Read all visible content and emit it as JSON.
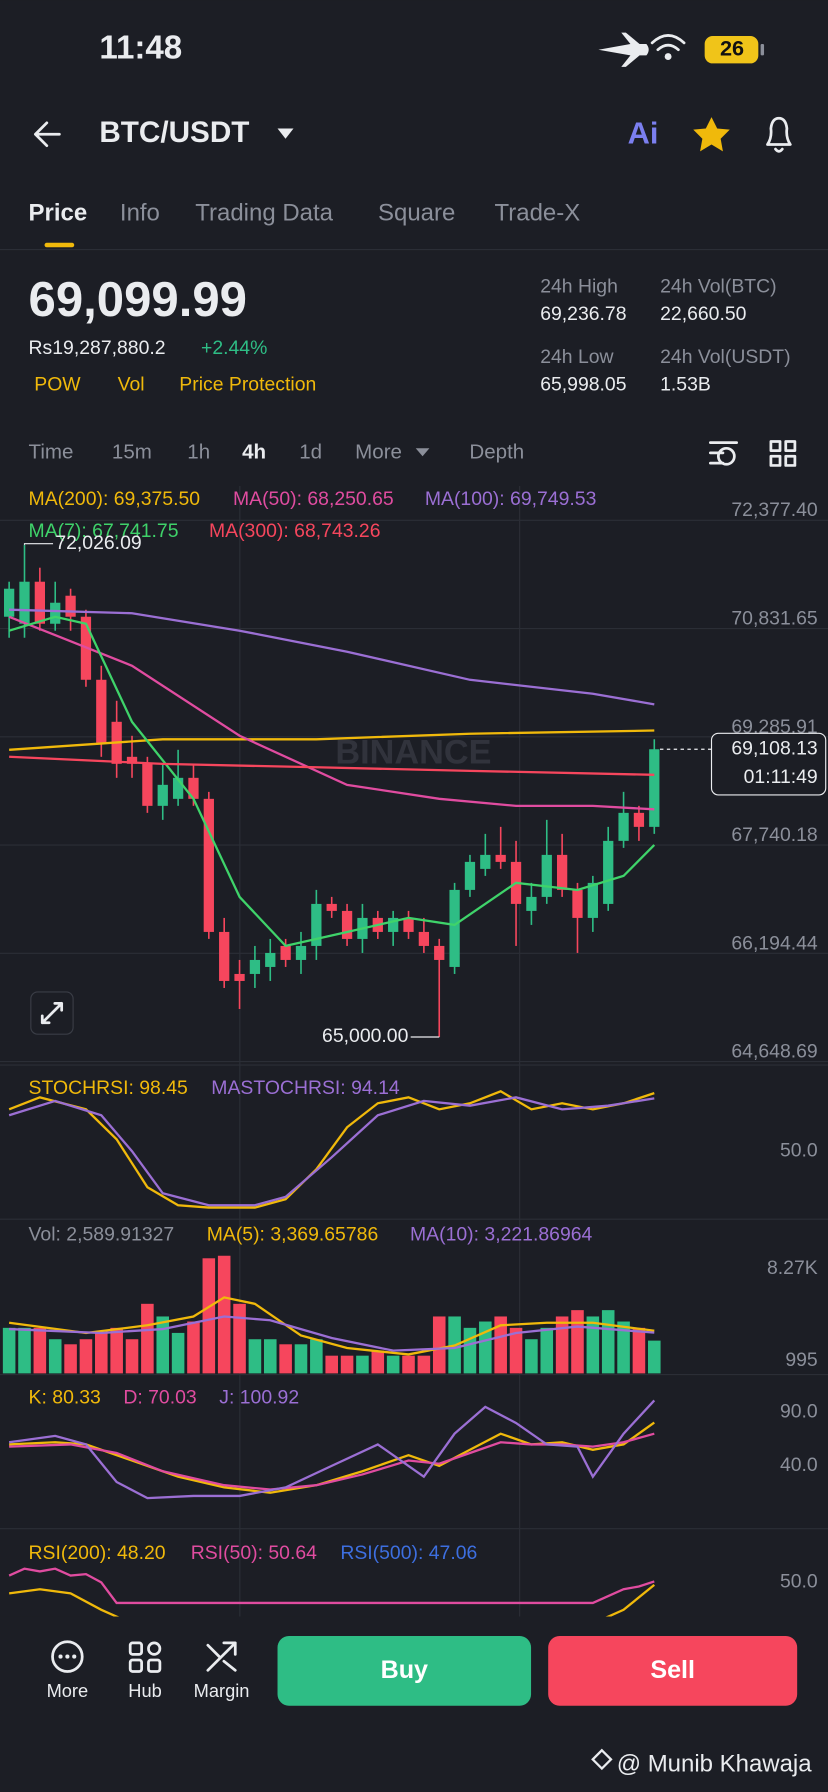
{
  "status_bar": {
    "time": "11:48",
    "battery": "26"
  },
  "header": {
    "pair": "BTC/USDT",
    "ai": "Ai"
  },
  "tabs": {
    "items": [
      "Price",
      "Info",
      "Trading Data",
      "Square",
      "Trade-X"
    ],
    "active": 0
  },
  "ticker": {
    "last_price": "69,099.99",
    "fiat_price": "Rs19,287,880.2",
    "change": "+2.44%",
    "tags": [
      "POW",
      "Vol",
      "Price Protection"
    ],
    "stats": [
      {
        "label": "24h High",
        "value": "69,236.78"
      },
      {
        "label": "24h Vol(BTC)",
        "value": "22,660.50"
      },
      {
        "label": "24h Low",
        "value": "65,998.05"
      },
      {
        "label": "24h Vol(USDT)",
        "value": "1.53B"
      }
    ]
  },
  "intervals": {
    "items": [
      "Time",
      "15m",
      "1h",
      "4h",
      "1d",
      "More",
      "Depth"
    ],
    "active": 3
  },
  "price_chart": {
    "type": "candlestick",
    "watermark": "BINANCE",
    "up_color": "#2ebd85",
    "down_color": "#f6465d",
    "ylim": [
      64648.69,
      72377.4
    ],
    "yticks": [
      {
        "value": 72377.4,
        "label": "72,377.40"
      },
      {
        "value": 70831.65,
        "label": "70,831.65"
      },
      {
        "value": 69285.91,
        "label": "69,285.91"
      },
      {
        "value": 67740.18,
        "label": "67,740.18"
      },
      {
        "value": 66194.44,
        "label": "66,194.44"
      },
      {
        "value": 64648.69,
        "label": "64,648.69"
      }
    ],
    "candles": [
      [
        71000,
        71500,
        70700,
        71400
      ],
      [
        70900,
        72026.09,
        70700,
        71500
      ],
      [
        71500,
        71700,
        70800,
        70900
      ],
      [
        70900,
        71500,
        70800,
        71200
      ],
      [
        71300,
        71400,
        70800,
        71000
      ],
      [
        71000,
        71100,
        70000,
        70100
      ],
      [
        70100,
        70300,
        69000,
        69200
      ],
      [
        69500,
        69800,
        68700,
        68900
      ],
      [
        69000,
        69300,
        68700,
        68900
      ],
      [
        68900,
        69000,
        68200,
        68300
      ],
      [
        68300,
        68900,
        68100,
        68600
      ],
      [
        68400,
        69100,
        68300,
        68700
      ],
      [
        68700,
        68900,
        68300,
        68400
      ],
      [
        68400,
        68500,
        66400,
        66500
      ],
      [
        66500,
        66700,
        65700,
        65800
      ],
      [
        65900,
        66100,
        65400,
        65800
      ],
      [
        65900,
        66300,
        65700,
        66100
      ],
      [
        66000,
        66400,
        65800,
        66200
      ],
      [
        66300,
        66400,
        66000,
        66100
      ],
      [
        66100,
        66500,
        65900,
        66300
      ],
      [
        66300,
        67100,
        66100,
        66900
      ],
      [
        66900,
        67000,
        66700,
        66800
      ],
      [
        66800,
        66900,
        66300,
        66400
      ],
      [
        66400,
        66900,
        66200,
        66700
      ],
      [
        66700,
        66800,
        66400,
        66500
      ],
      [
        66500,
        66800,
        66300,
        66700
      ],
      [
        66700,
        66800,
        66400,
        66500
      ],
      [
        66500,
        66700,
        66200,
        66300
      ],
      [
        66300,
        66400,
        65000,
        66100
      ],
      [
        66000,
        67200,
        65900,
        67100
      ],
      [
        67100,
        67600,
        67000,
        67500
      ],
      [
        67400,
        67900,
        67300,
        67600
      ],
      [
        67600,
        68000,
        67400,
        67500
      ],
      [
        67500,
        67800,
        66300,
        66900
      ],
      [
        66800,
        67200,
        66600,
        67000
      ],
      [
        67000,
        68100,
        66900,
        67600
      ],
      [
        67600,
        67900,
        67000,
        67100
      ],
      [
        67100,
        67200,
        66200,
        66700
      ],
      [
        66700,
        67300,
        66500,
        67200
      ],
      [
        66900,
        68000,
        66800,
        67800
      ],
      [
        67800,
        68500,
        67700,
        68200
      ],
      [
        68200,
        68300,
        67800,
        68000
      ],
      [
        68000,
        69250,
        67900,
        69108.13
      ]
    ],
    "high_label": "72,026.09",
    "low_label": "65,000.00",
    "last_label": "69,108.13",
    "countdown": "01:11:49",
    "moving_averages": [
      {
        "legend": "MA(200): 69,375.50",
        "color": "#f0b90b",
        "x": [
          0,
          10,
          20,
          30,
          42
        ],
        "values": [
          69100,
          69250,
          69250,
          69330,
          69375.5
        ]
      },
      {
        "legend": "MA(50): 68,250.65",
        "color": "#e04ca0",
        "x": [
          0,
          8,
          15,
          22,
          28,
          33,
          38,
          42
        ],
        "values": [
          71000,
          70300,
          69300,
          68600,
          68400,
          68300,
          68300,
          68250.65
        ]
      },
      {
        "legend": "MA(100): 69,749.53",
        "color": "#9b6fd4",
        "x": [
          0,
          8,
          15,
          22,
          30,
          38,
          42
        ],
        "values": [
          71100,
          71050,
          70800,
          70500,
          70100,
          69900,
          69749.53
        ]
      },
      {
        "legend": "MA(7): 67,741.75",
        "color": "#3fd36a",
        "x": [
          0,
          3,
          5,
          8,
          12,
          15,
          18,
          22,
          26,
          29,
          33,
          37,
          40,
          42
        ],
        "values": [
          70800,
          71000,
          70900,
          69500,
          68400,
          67000,
          66300,
          66500,
          66700,
          66600,
          67200,
          67100,
          67300,
          67741.75
        ]
      },
      {
        "legend": "MA(300): 68,743.26",
        "color": "#f6465d",
        "x": [
          0,
          10,
          20,
          30,
          42
        ],
        "values": [
          69000,
          68900,
          68850,
          68800,
          68743.26
        ]
      }
    ]
  },
  "stoch_rsi": {
    "ylim": [
      0,
      100
    ],
    "yticks": [
      {
        "value": 50,
        "label": "50.0"
      }
    ],
    "series": [
      {
        "legend": "STOCHRSI: 98.45",
        "color": "#f0b90b",
        "x": [
          0,
          2,
          5,
          7,
          9,
          11,
          13,
          16,
          18,
          20,
          22,
          24,
          26,
          28,
          30,
          32,
          34,
          36,
          38,
          40,
          42
        ],
        "values": [
          85,
          95,
          85,
          60,
          20,
          5,
          3,
          3,
          10,
          35,
          70,
          90,
          95,
          85,
          90,
          100,
          85,
          90,
          85,
          90,
          98.45
        ]
      },
      {
        "legend": "MASTOCHRSI: 94.14",
        "color": "#9b6fd4",
        "x": [
          0,
          3,
          6,
          8,
          10,
          13,
          16,
          18,
          21,
          24,
          27,
          30,
          33,
          36,
          39,
          42
        ],
        "values": [
          80,
          92,
          80,
          50,
          15,
          5,
          5,
          12,
          45,
          80,
          92,
          88,
          95,
          85,
          88,
          94.14
        ]
      }
    ]
  },
  "volume": {
    "ylim": [
      0,
      9300
    ],
    "yticks": [
      {
        "value": 8270,
        "label": "8.27K"
      },
      995
    ],
    "legend": "Vol: 2,589.91327",
    "values": [
      3600,
      3600,
      3600,
      2700,
      2300,
      2700,
      3200,
      3600,
      2700,
      5500,
      4500,
      3200,
      4100,
      9100,
      9300,
      5500,
      2700,
      2700,
      2300,
      2300,
      2700,
      1400,
      1400,
      1400,
      1800,
      1400,
      1400,
      1400,
      4500,
      4500,
      3600,
      4100,
      4500,
      3600,
      2700,
      3600,
      4500,
      5000,
      4500,
      5000,
      4100,
      3600,
      2589.91327
    ],
    "series": [
      {
        "legend": "MA(5): 3,369.65786",
        "color": "#f0b90b",
        "x": [
          0,
          5,
          9,
          12,
          14,
          16,
          19,
          22,
          26,
          29,
          32,
          35,
          38,
          42
        ],
        "values": [
          4000,
          3200,
          3800,
          4500,
          6000,
          5500,
          3000,
          2000,
          1500,
          2200,
          3800,
          4000,
          4000,
          3369.65786
        ]
      },
      {
        "legend": "MA(10): 3,221.86964",
        "color": "#9b6fd4",
        "x": [
          0,
          6,
          10,
          14,
          17,
          21,
          25,
          29,
          33,
          37,
          42
        ],
        "values": [
          3500,
          3200,
          3500,
          4500,
          4200,
          2800,
          1800,
          2000,
          3200,
          3700,
          3221.86964
        ]
      }
    ]
  },
  "kdj": {
    "ylim": [
      0,
      100
    ],
    "yticks": [
      {
        "value": 90,
        "label": "90.0"
      },
      {
        "value": 40,
        "label": "40.0"
      }
    ],
    "series": [
      {
        "legend": "K: 80.33",
        "color": "#f0b90b",
        "x": [
          0,
          3,
          5,
          8,
          11,
          14,
          17,
          20,
          23,
          26,
          28,
          30,
          32,
          34,
          36,
          38,
          40,
          42
        ],
        "values": [
          60,
          62,
          60,
          45,
          30,
          20,
          15,
          22,
          35,
          50,
          40,
          55,
          70,
          60,
          62,
          55,
          60,
          80.33
        ]
      },
      {
        "legend": "D: 70.03",
        "color": "#e04ca0",
        "x": [
          0,
          4,
          7,
          10,
          14,
          17,
          20,
          23,
          26,
          28,
          30,
          32,
          34,
          36,
          38,
          40,
          42
        ],
        "values": [
          58,
          60,
          52,
          35,
          22,
          18,
          22,
          32,
          45,
          42,
          52,
          62,
          60,
          60,
          58,
          62,
          70.03
        ]
      },
      {
        "legend": "J: 100.92",
        "color": "#9b6fd4",
        "x": [
          0,
          3,
          5,
          7,
          9,
          12,
          15,
          18,
          21,
          24,
          27,
          29,
          31,
          33,
          35,
          37,
          38,
          40,
          42
        ],
        "values": [
          62,
          68,
          60,
          25,
          10,
          12,
          12,
          20,
          40,
          60,
          30,
          70,
          95,
          80,
          60,
          58,
          30,
          70,
          100.92
        ]
      }
    ]
  },
  "rsi": {
    "ylim": [
      0,
      100
    ],
    "yticks": [
      {
        "value": 50,
        "label": "50.0"
      }
    ],
    "series": [
      {
        "legend": "RSI(200): 48.20",
        "color": "#f0b90b",
        "x": [
          0,
          2,
          4,
          6,
          8,
          38,
          40,
          42
        ],
        "values": [
          42,
          45,
          42,
          30,
          20,
          20,
          30,
          48.2
        ]
      },
      {
        "legend": "RSI(50): 50.64",
        "color": "#e04ca0",
        "x": [
          0,
          1,
          2,
          3,
          4,
          5,
          6,
          7,
          38,
          40,
          41,
          42
        ],
        "values": [
          55,
          60,
          58,
          60,
          55,
          56,
          50,
          35,
          35,
          45,
          47,
          50.64
        ]
      },
      {
        "legend": "RSI(500): 47.06",
        "color": "#3d6fe0",
        "x": [],
        "values": []
      }
    ]
  },
  "bottom_bar": {
    "items": [
      "More",
      "Hub",
      "Margin"
    ],
    "buy": "Buy",
    "sell": "Sell"
  },
  "watermark": "@ Munib Khawaja"
}
